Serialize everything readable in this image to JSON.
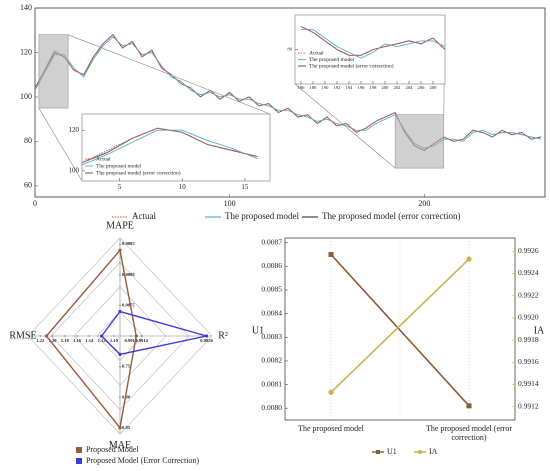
{
  "chart_data": [
    {
      "type": "line",
      "xlim": [
        0,
        262
      ],
      "ylim": [
        55,
        140
      ],
      "xticks": [
        0,
        100,
        200
      ],
      "yticks": [
        60,
        80,
        100,
        120,
        140
      ],
      "x": [
        0,
        5,
        10,
        15,
        20,
        25,
        30,
        35,
        40,
        45,
        50,
        55,
        60,
        65,
        70,
        75,
        80,
        85,
        90,
        95,
        100,
        105,
        110,
        115,
        120,
        125,
        130,
        135,
        140,
        145,
        150,
        155,
        160,
        165,
        170,
        175,
        180,
        185,
        190,
        195,
        200,
        205,
        210,
        215,
        220,
        225,
        230,
        235,
        240,
        245,
        250,
        255,
        260
      ],
      "series": [
        {
          "name": "Actual",
          "color": "#e06666",
          "values": [
            104,
            112,
            121,
            118,
            112,
            110,
            118,
            124,
            128,
            122,
            125,
            118,
            121,
            113,
            110,
            106,
            104,
            100,
            103,
            99,
            102,
            98,
            100,
            96,
            97,
            93,
            95,
            91,
            92,
            88,
            91,
            87,
            88,
            84,
            86,
            89,
            91,
            93,
            84,
            78,
            76,
            79,
            82,
            80,
            81,
            85,
            84,
            82,
            85,
            83,
            84,
            81,
            82
          ]
        },
        {
          "name": "The proposed model",
          "color": "#4fb0c6",
          "values": [
            103,
            111,
            119,
            119,
            113,
            109,
            117,
            123,
            127,
            123,
            124,
            119,
            120,
            114,
            109,
            107,
            103,
            101,
            102,
            100,
            101,
            99,
            99,
            97,
            96,
            94,
            94,
            92,
            91,
            89,
            90,
            88,
            87,
            85,
            85,
            88,
            90,
            92,
            85,
            79,
            77,
            78,
            81,
            81,
            80,
            84,
            85,
            83,
            84,
            84,
            83,
            82,
            81
          ]
        },
        {
          "name": "The proposed model (error correction)",
          "color": "#444444",
          "values": [
            104,
            112,
            120,
            118,
            112,
            110,
            118,
            124,
            128,
            122,
            125,
            118,
            121,
            113,
            110,
            106,
            104,
            100,
            103,
            99,
            102,
            98,
            100,
            96,
            97,
            93,
            95,
            91,
            92,
            88,
            91,
            87,
            88,
            84,
            86,
            89,
            91,
            93,
            84,
            78,
            76,
            79,
            82,
            80,
            81,
            85,
            84,
            82,
            85,
            83,
            84,
            81,
            82
          ]
        }
      ]
    },
    {
      "type": "line",
      "xlim": [
        2,
        17
      ],
      "ylim": [
        95,
        128
      ],
      "xticks": [
        5,
        10,
        15
      ],
      "yticks": [
        100,
        120
      ],
      "x": [
        2,
        4,
        6,
        8,
        10,
        12,
        14,
        16
      ],
      "series": [
        {
          "name": "Actual",
          "color": "#e06666",
          "values": [
            104,
            110,
            116,
            121,
            119,
            113,
            110,
            107
          ]
        },
        {
          "name": "The proposed model",
          "color": "#4fb0c6",
          "values": [
            103,
            108,
            114,
            120,
            120,
            115,
            111,
            106
          ]
        },
        {
          "name": "The proposed model (error correction)",
          "color": "#444444",
          "values": [
            104,
            109,
            116,
            121,
            119,
            113,
            110,
            107
          ]
        }
      ]
    },
    {
      "type": "line",
      "xlim": [
        185,
        210
      ],
      "ylim": [
        68,
        92
      ],
      "xticks": [
        186,
        188,
        190,
        192,
        194,
        196,
        198,
        200,
        202,
        204,
        206,
        208
      ],
      "yticks": [
        80
      ],
      "x": [
        186,
        188,
        190,
        192,
        194,
        196,
        198,
        200,
        202,
        204,
        206,
        208,
        210
      ],
      "series": [
        {
          "name": "Actual",
          "color": "#e06666",
          "values": [
            88,
            86,
            83,
            80,
            78,
            78,
            80,
            81,
            82,
            83,
            82,
            84,
            80
          ]
        },
        {
          "name": "The proposed model",
          "color": "#4fb0c6",
          "values": [
            87,
            87,
            84,
            81,
            79,
            77,
            79,
            82,
            81,
            82,
            83,
            83,
            81
          ]
        },
        {
          "name": "The proposed model (error correction)",
          "color": "#444444",
          "values": [
            88,
            86,
            83,
            80,
            78,
            78,
            80,
            81,
            82,
            83,
            82,
            84,
            80
          ]
        }
      ]
    },
    {
      "type": "radar",
      "axes": [
        {
          "name": "MAPE",
          "lim": [
            0.007,
            0.0086
          ],
          "ticks": [
            0.0085,
            {
              "value": 0.008,
              "label": "0.0080"
            },
            0.0075
          ]
        },
        {
          "name": "R²",
          "lim": [
            0.991,
            0.9927
          ],
          "ticks": [
            0.9912,
            0.9914,
            0.9926
          ]
        },
        {
          "name": "MAE",
          "lim": [
            0.7,
            0.86
          ],
          "ticks": [
            0.75,
            {
              "value": 0.8,
              "label": "0.80"
            },
            0.85
          ]
        },
        {
          "name": "RMSE",
          "lim": [
            1.09,
            1.24
          ],
          "ticks": [
            1.22,
            {
              "value": 1.2,
              "label": "1.20"
            },
            1.18,
            1.16,
            1.14,
            1.12,
            {
              "value": 1.1,
              "label": "1.10"
            }
          ]
        }
      ],
      "series": [
        {
          "name": "Proposed Model",
          "color": "#9a5b3a",
          "values": [
            0.0084,
            0.9913,
            0.85,
            1.21
          ]
        },
        {
          "name": "Proposed Model (Error Correction)",
          "color": "#3a3ad6",
          "values": [
            0.0074,
            0.9926,
            0.73,
            1.12
          ]
        }
      ]
    },
    {
      "type": "line",
      "categories": [
        "The proposed model",
        "The proposed model (error correction)"
      ],
      "ylabel": "U1",
      "y2label": "IA",
      "ylim": [
        0.00795,
        0.00872
      ],
      "yticks": [
        {
          "value": 0.008,
          "label": "0.0080"
        },
        0.0081,
        0.0082,
        0.0083,
        0.0084,
        0.0085,
        0.0086,
        0.0087
      ],
      "y2lim": [
        0.99108,
        0.99272
      ],
      "y2ticks": [
        0.9912,
        0.9914,
        0.9916,
        0.9918,
        {
          "value": 0.992,
          "label": "0.9920"
        },
        0.9922,
        0.9924,
        0.9926
      ],
      "series": [
        {
          "name": "U1",
          "color": "#8b5a3c",
          "values": [
            0.00865,
            0.00801
          ]
        },
        {
          "name": "IA",
          "color": "#c9b44a",
          "axis": "y2",
          "values": [
            0.99133,
            0.99253
          ]
        }
      ]
    }
  ]
}
